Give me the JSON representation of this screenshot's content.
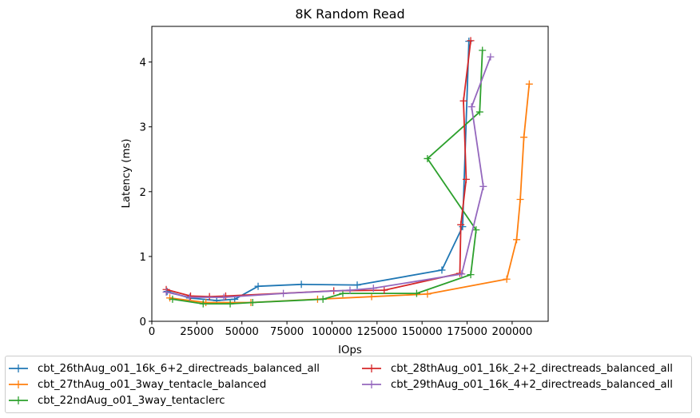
{
  "chart_data": {
    "type": "line",
    "title": "8K  Random Read",
    "xlabel": "IOps",
    "ylabel": "Latency (ms)",
    "xlim": [
      0,
      220000
    ],
    "ylim": [
      0,
      4.55
    ],
    "xticks": [
      0,
      25000,
      50000,
      75000,
      100000,
      125000,
      150000,
      175000,
      200000
    ],
    "yticks": [
      0,
      1,
      2,
      3,
      4
    ],
    "grid": false,
    "legend_position": "bottom",
    "series": [
      {
        "name": "cbt_26thAug_o01_16k_6+2_directreads_balanced_all",
        "color": "#1f77b4",
        "points": [
          [
            8500,
            0.46
          ],
          [
            21000,
            0.36
          ],
          [
            36000,
            0.32
          ],
          [
            46000,
            0.34
          ],
          [
            59000,
            0.54
          ],
          [
            83000,
            0.57
          ],
          [
            114000,
            0.56
          ],
          [
            161000,
            0.79
          ],
          [
            172500,
            1.46
          ],
          [
            176000,
            4.32
          ]
        ]
      },
      {
        "name": "cbt_27thAug_o01_3way_tentacle_balanced",
        "color": "#ff7f0e",
        "points": [
          [
            10000,
            0.36
          ],
          [
            30000,
            0.29
          ],
          [
            55000,
            0.29
          ],
          [
            92000,
            0.34
          ],
          [
            122000,
            0.38
          ],
          [
            153000,
            0.42
          ],
          [
            197000,
            0.65
          ],
          [
            202500,
            1.26
          ],
          [
            204500,
            1.88
          ],
          [
            206500,
            2.84
          ],
          [
            209500,
            3.66
          ]
        ]
      },
      {
        "name": "cbt_22ndAug_o01_3way_tentaclerc",
        "color": "#2ca02c",
        "points": [
          [
            11500,
            0.34
          ],
          [
            28500,
            0.27
          ],
          [
            43500,
            0.27
          ],
          [
            56000,
            0.29
          ],
          [
            95000,
            0.34
          ],
          [
            106000,
            0.43
          ],
          [
            147000,
            0.43
          ],
          [
            177000,
            0.72
          ],
          [
            180000,
            1.41
          ],
          [
            153000,
            2.51
          ],
          [
            182000,
            3.23
          ],
          [
            183500,
            4.18
          ]
        ]
      },
      {
        "name": "cbt_28thAug_o01_16k_2+2_directreads_balanced_all",
        "color": "#d62728",
        "points": [
          [
            8000,
            0.49
          ],
          [
            21500,
            0.39
          ],
          [
            32000,
            0.38
          ],
          [
            41000,
            0.39
          ],
          [
            101000,
            0.47
          ],
          [
            129000,
            0.48
          ],
          [
            171000,
            0.74
          ],
          [
            171500,
            1.49
          ],
          [
            174500,
            2.19
          ],
          [
            173000,
            3.4
          ],
          [
            177000,
            4.33
          ]
        ]
      },
      {
        "name": "cbt_29thAug_o01_16k_4+2_directreads_balanced_all",
        "color": "#9467bd",
        "points": [
          [
            8000,
            0.45
          ],
          [
            21000,
            0.37
          ],
          [
            40000,
            0.37
          ],
          [
            73000,
            0.43
          ],
          [
            110000,
            0.48
          ],
          [
            123000,
            0.51
          ],
          [
            172000,
            0.73
          ],
          [
            184000,
            2.08
          ],
          [
            177500,
            3.31
          ],
          [
            188000,
            4.08
          ]
        ]
      }
    ]
  }
}
